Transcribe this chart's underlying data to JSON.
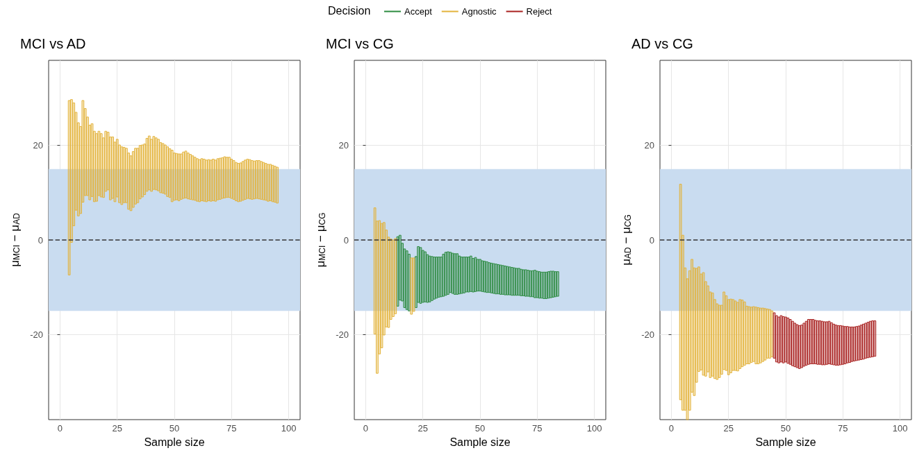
{
  "chart_data": [
    {
      "type": "bar",
      "title": "MCI vs AD",
      "xlabel": "Sample size",
      "ylabel": "μ$_{MCI}$ − μ$_{AD}$",
      "xlim": [
        -5,
        105
      ],
      "xticks": [
        0,
        25,
        50,
        75,
        100
      ],
      "ylim": [
        -38,
        38
      ],
      "yticks": [
        -20,
        0,
        20
      ],
      "grid": true,
      "bands": [
        {
          "axis": "y",
          "from": -15,
          "to": 15,
          "color": "#c9dcf0"
        }
      ],
      "ref_lines": [
        {
          "axis": "y",
          "value": 0,
          "line_style": "dashed",
          "color": "#333333"
        }
      ],
      "series": [
        {
          "color": "#e3b33b",
          "x": [
            4,
            5,
            6,
            7,
            8,
            9,
            10,
            11,
            12,
            13,
            14,
            15,
            16,
            17,
            18,
            19,
            20,
            21,
            22,
            23,
            24,
            25,
            26,
            27,
            28,
            29,
            30,
            31,
            32,
            33,
            34,
            35,
            36,
            37,
            38,
            39,
            40,
            41,
            42,
            43,
            44,
            45,
            46,
            47,
            48,
            49,
            50,
            51,
            52,
            53,
            54,
            55,
            56,
            57,
            58,
            59,
            60,
            61,
            62,
            63,
            64,
            65,
            66,
            67,
            68,
            69,
            70,
            71,
            72,
            73,
            74,
            75,
            76,
            77,
            78,
            79,
            80,
            81,
            82,
            83,
            84,
            85,
            86,
            87,
            88,
            89,
            90,
            91,
            92,
            93,
            94,
            95
          ],
          "base": [
            -7.4,
            -0.5,
            3,
            6.3,
            5.1,
            5.6,
            8,
            9.4,
            9.4,
            8.5,
            9.2,
            8.1,
            8.2,
            9.4,
            9.1,
            9,
            10.3,
            10.6,
            8.5,
            8.8,
            8.1,
            9.1,
            7.9,
            7.5,
            7.9,
            7.9,
            6.5,
            6.2,
            6.9,
            7.6,
            7.9,
            8.7,
            9.1,
            9.6,
            10.3,
            10.6,
            10.3,
            10.7,
            10.6,
            10.4,
            10,
            9.9,
            9.7,
            9.2,
            9,
            8.1,
            8.4,
            8.5,
            8.3,
            8.6,
            8.8,
            8.9,
            8.7,
            8.6,
            8.5,
            8.4,
            8.2,
            8.1,
            8.3,
            8.2,
            8.1,
            8.3,
            8.2,
            8.3,
            8.2,
            8.5,
            8.6,
            8.8,
            8.9,
            9,
            9,
            8.8,
            8.6,
            8.3,
            8.1,
            8.2,
            8.4,
            8.6,
            8.8,
            8.7,
            8.6,
            8.7,
            8.8,
            8.7,
            8.6,
            8.5,
            8.4,
            8.2,
            8.3,
            8.1,
            8,
            7.8
          ],
          "values": [
            36.9,
            30.2,
            26,
            20.7,
            19.7,
            18.4,
            21.5,
            18.4,
            16.6,
            15.8,
            15.4,
            14.9,
            14.3,
            13.6,
            13.4,
            12.6,
            12.7,
            12.2,
            13.3,
            13,
            12.6,
            12.2,
            12.2,
            12.2,
            11.7,
            11.5,
            11.9,
            11.6,
            11.8,
            11.8,
            11.5,
            11.3,
            11,
            10.7,
            11.2,
            11.4,
            11,
            11.2,
            11,
            10.9,
            10.6,
            10.5,
            10.4,
            10.5,
            10.3,
            10.9,
            10,
            9.8,
            9.9,
            9.6,
            9.8,
            9.9,
            9.7,
            9.5,
            9.3,
            9.1,
            9,
            8.9,
            8.9,
            8.9,
            8.8,
            8.7,
            8.7,
            8.8,
            8.7,
            8.7,
            8.7,
            8.6,
            8.7,
            8.5,
            8.5,
            8.3,
            8.2,
            8.1,
            8.1,
            8.1,
            8.2,
            8.3,
            8.3,
            8.3,
            8.2,
            8,
            8,
            8.1,
            8,
            7.9,
            7.8,
            7.8,
            7.7,
            7.7,
            7.6,
            7.6
          ]
        }
      ]
    },
    {
      "type": "bar",
      "title": "MCI vs CG",
      "xlabel": "Sample size",
      "ylabel": "μ$_{MCI}$ − μ$_{CG}$",
      "xlim": [
        -5,
        105
      ],
      "xticks": [
        0,
        25,
        50,
        75,
        100
      ],
      "ylim": [
        -38,
        38
      ],
      "yticks": [
        -20,
        0,
        20
      ],
      "grid": true,
      "legend": "top",
      "legend_title": "Decision",
      "bands": [
        {
          "axis": "y",
          "from": -15,
          "to": 15,
          "color": "#c9dcf0"
        }
      ],
      "ref_lines": [
        {
          "axis": "y",
          "value": 0,
          "line_style": "dashed",
          "color": "#333333"
        }
      ],
      "series": [
        {
          "name": "Accept",
          "color": "#2b8a3e",
          "x": [
            14,
            15,
            16,
            17,
            18,
            19,
            22,
            23,
            24,
            25,
            26,
            27,
            28,
            29,
            30,
            31,
            32,
            33,
            34,
            35,
            36,
            37,
            38,
            39,
            40,
            41,
            42,
            43,
            44,
            45,
            46,
            47,
            48,
            49,
            50,
            51,
            52,
            53,
            54,
            55,
            56,
            57,
            58,
            59,
            60,
            61,
            62,
            63,
            64,
            65,
            66,
            67,
            68,
            69,
            70,
            71,
            72,
            73,
            74,
            75,
            76,
            77,
            78,
            79,
            80,
            81,
            82,
            83,
            84
          ],
          "base": [
            -14,
            -12.7,
            -12.9,
            -14.3,
            -14.7,
            -15,
            -14.3,
            -13.2,
            -13.4,
            -13.2,
            -13.1,
            -13.2,
            -13.1,
            -12.8,
            -12.5,
            -12.3,
            -12.1,
            -12,
            -11.9,
            -11.7,
            -11.5,
            -11.1,
            -11.3,
            -11.5,
            -11.5,
            -11.4,
            -11.3,
            -11.2,
            -11,
            -11,
            -10.9,
            -11,
            -10.9,
            -10.8,
            -10.8,
            -10.9,
            -11,
            -11.1,
            -11.1,
            -11.2,
            -11.3,
            -11.4,
            -11.4,
            -11.5,
            -11.5,
            -11.6,
            -11.6,
            -11.6,
            -11.7,
            -11.7,
            -11.7,
            -11.7,
            -11.8,
            -11.8,
            -11.9,
            -11.9,
            -12,
            -12,
            -12.2,
            -12.2,
            -12.3,
            -12.3,
            -12.4,
            -12.4,
            -12.3,
            -12.2,
            -12.1,
            -12,
            -11.9
          ],
          "values": [
            14.7,
            13.7,
            12.2,
            12.4,
            12.4,
            12,
            10.8,
            11.8,
            11.8,
            11,
            10.6,
            10.1,
            9.7,
            9.3,
            8.9,
            8.7,
            8.5,
            8.4,
            8.9,
            9.1,
            9,
            8.5,
            8.5,
            8.6,
            8.6,
            8,
            7.7,
            7.6,
            7.4,
            7.4,
            7.5,
            7.1,
            7.2,
            6.7,
            6.7,
            6.5,
            6.5,
            6.5,
            6.3,
            6.3,
            6.3,
            6.3,
            6.2,
            6.2,
            6.1,
            6.1,
            6,
            5.9,
            5.9,
            5.8,
            5.7,
            5.7,
            5.6,
            5.5,
            5.6,
            5.5,
            5.5,
            5.5,
            5.8,
            5.6,
            5.6,
            5.5,
            5.6,
            5.6,
            5.6,
            5.6,
            5.5,
            5.3,
            5.2
          ]
        },
        {
          "name": "Agnostic",
          "color": "#e3b33b",
          "x": [
            4,
            5,
            6,
            7,
            8,
            9,
            10,
            11,
            12,
            13,
            20,
            21
          ],
          "base": [
            -19.9,
            -28.2,
            -24.1,
            -22.8,
            -20.1,
            -18.4,
            -18.5,
            -16.8,
            -16.2,
            -15.6,
            -15.7,
            -15.1
          ],
          "values": [
            26.7,
            32.2,
            28.2,
            26.3,
            23.8,
            20.5,
            19.1,
            17,
            16.2,
            15.9,
            11.9,
            11.3
          ]
        },
        {
          "name": "Reject",
          "color": "#a8201f"
        }
      ]
    },
    {
      "type": "bar",
      "title": "AD vs CG",
      "xlabel": "Sample size",
      "ylabel": "μ$_{AD}$ − μ$_{CG}$",
      "xlim": [
        -5,
        105
      ],
      "xticks": [
        0,
        25,
        50,
        75,
        100
      ],
      "ylim": [
        -38,
        38
      ],
      "yticks": [
        -20,
        0,
        20
      ],
      "grid": true,
      "bands": [
        {
          "axis": "y",
          "from": -15,
          "to": 15,
          "color": "#c9dcf0"
        }
      ],
      "ref_lines": [
        {
          "axis": "y",
          "value": 0,
          "line_style": "dashed",
          "color": "#333333"
        }
      ],
      "series": [
        {
          "color": "#e3b33b",
          "x": [
            4,
            5,
            6,
            7,
            8,
            9,
            10,
            11,
            12,
            13,
            14,
            15,
            16,
            17,
            18,
            19,
            20,
            21,
            22,
            23,
            24,
            25,
            26,
            27,
            28,
            29,
            30,
            31,
            32,
            33,
            34,
            35,
            36,
            37,
            38,
            39,
            40,
            41,
            42,
            43,
            44
          ],
          "base": [
            -33.8,
            -36,
            -36,
            -38,
            -36,
            -32.2,
            -32.9,
            -30.1,
            -27.8,
            -27.5,
            -28.6,
            -28.8,
            -27.9,
            -29.1,
            -28.8,
            -29.3,
            -29.5,
            -29.1,
            -28.4,
            -27.4,
            -27.6,
            -28.5,
            -28.1,
            -27.6,
            -27.6,
            -27.7,
            -27.2,
            -26.8,
            -26.5,
            -26.2,
            -26.2,
            -25.9,
            -25.7,
            -26.2,
            -26.2,
            -26,
            -25.7,
            -25.4,
            -25,
            -25,
            -24.7
          ],
          "values": [
            45.6,
            37,
            30.1,
            29.8,
            29.5,
            28.1,
            27,
            24.1,
            22.1,
            20.3,
            21.7,
            20,
            18.2,
            18.1,
            17.6,
            16.7,
            16,
            15.3,
            14.6,
            16.4,
            15.8,
            15.9,
            15.6,
            15,
            14.7,
            14.5,
            14.6,
            14.1,
            13.4,
            12.2,
            12.1,
            11.7,
            11.6,
            12,
            11.9,
            11.6,
            11.3,
            10.9,
            10.4,
            10.3,
            9.7
          ]
        },
        {
          "color": "#a8201f",
          "x": [
            45,
            46,
            47,
            48,
            49,
            50,
            51,
            52,
            53,
            54,
            55,
            56,
            57,
            58,
            59,
            60,
            61,
            62,
            63,
            64,
            65,
            66,
            67,
            68,
            69,
            70,
            71,
            72,
            73,
            74,
            75,
            76,
            77,
            78,
            79,
            80,
            81,
            82,
            83,
            84,
            85,
            86,
            87,
            88,
            89
          ],
          "base": [
            -25,
            -25.8,
            -26,
            -25.8,
            -26,
            -25.8,
            -26.1,
            -26.3,
            -26.6,
            -26.8,
            -27,
            -27.2,
            -27,
            -26.7,
            -26.5,
            -26.3,
            -26.2,
            -26.2,
            -26.2,
            -26.3,
            -26.3,
            -26.4,
            -26.4,
            -26.3,
            -26.2,
            -26.3,
            -26.4,
            -26.5,
            -26.5,
            -26.4,
            -26.3,
            -26.2,
            -26,
            -25.9,
            -25.7,
            -25.6,
            -25.5,
            -25.4,
            -25.3,
            -25.2,
            -25,
            -24.9,
            -24.8,
            -24.7,
            -24.6
          ],
          "values": [
            9.6,
            9.8,
            9.7,
            9.8,
            9.8,
            9.5,
            9.6,
            9.5,
            9.4,
            9.2,
            9.1,
            9.1,
            9,
            9.1,
            9.3,
            9.5,
            9.4,
            9.4,
            9.2,
            9.2,
            9.2,
            9.2,
            9.1,
            9,
            9,
            8.8,
            8.6,
            8.5,
            8.4,
            8.3,
            8.1,
            7.9,
            7.7,
            7.5,
            7.3,
            7.2,
            7.2,
            7.2,
            7.3,
            7.4,
            7.4,
            7.5,
            7.6,
            7.6,
            7.5
          ]
        }
      ]
    }
  ]
}
